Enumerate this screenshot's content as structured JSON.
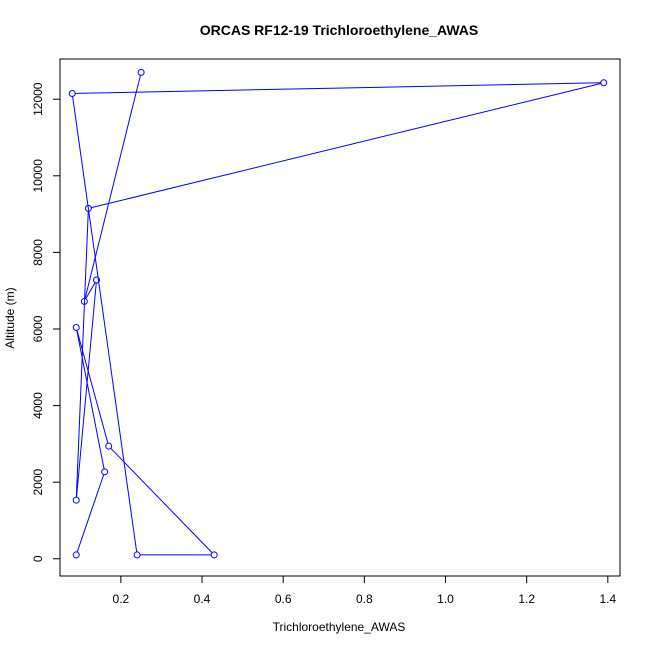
{
  "chart_data": {
    "type": "line",
    "title": "ORCAS RF12-19 Trichloroethylene_AWAS",
    "xlabel": "Trichloroethylene_AWAS",
    "ylabel": "Altitude (m)",
    "xlim": [
      0.05,
      1.43
    ],
    "ylim": [
      -450,
      13050
    ],
    "x_ticks": [
      0.2,
      0.4,
      0.6,
      0.8,
      1.0,
      1.2,
      1.4
    ],
    "x_tick_labels": [
      "0.2",
      "0.4",
      "0.6",
      "0.8",
      "1.0",
      "1.2",
      "1.4"
    ],
    "y_ticks": [
      0,
      2000,
      4000,
      6000,
      8000,
      10000,
      12000
    ],
    "y_tick_labels": [
      "0",
      "2000",
      "4000",
      "6000",
      "8000",
      "10000",
      "12000"
    ],
    "grid": false,
    "series": [
      {
        "color": "#0000ff",
        "marker": "open-circle",
        "points": [
          {
            "x": 0.09,
            "y": 100
          },
          {
            "x": 0.16,
            "y": 2270
          },
          {
            "x": 0.09,
            "y": 6040
          },
          {
            "x": 0.17,
            "y": 2940
          },
          {
            "x": 0.43,
            "y": 100
          },
          {
            "x": 0.24,
            "y": 100
          },
          {
            "x": 0.08,
            "y": 12150
          },
          {
            "x": 1.39,
            "y": 12430
          },
          {
            "x": 0.12,
            "y": 9150
          },
          {
            "x": 0.09,
            "y": 1530
          },
          {
            "x": 0.14,
            "y": 7280
          },
          {
            "x": 0.11,
            "y": 6720
          },
          {
            "x": 0.25,
            "y": 12700
          }
        ]
      }
    ]
  }
}
